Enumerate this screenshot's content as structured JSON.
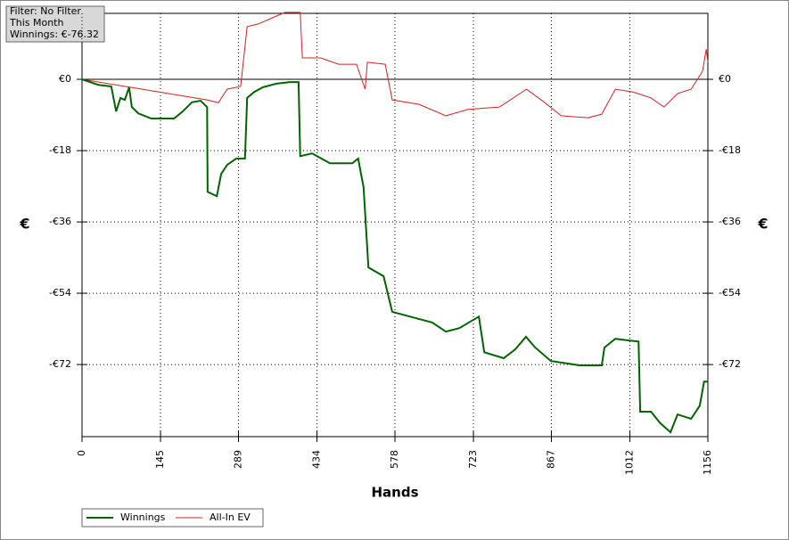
{
  "chart_data": {
    "type": "line",
    "annotations": [
      "Filter: No Filter",
      "This Month",
      "Winnings: €-76.32"
    ],
    "xlabel": "Hands",
    "ylabel": "€",
    "y2label": "€",
    "xlim": [
      0,
      1156
    ],
    "ylim": [
      -90.2,
      16.65
    ],
    "grid": true,
    "legend": "bottom-left",
    "xticks": [
      0,
      145,
      289,
      434,
      578,
      723,
      867,
      1012,
      1156
    ],
    "yticks": [
      {
        "value": 0,
        "label": "€0"
      },
      {
        "value": -18,
        "label": "-€18"
      },
      {
        "value": -36,
        "label": "-€36"
      },
      {
        "value": -54,
        "label": "-€54"
      },
      {
        "value": -72,
        "label": "-€72"
      }
    ],
    "series": [
      {
        "name": "Winnings",
        "color": "#006400",
        "x": [
          0,
          30,
          54,
          63,
          71,
          79,
          87,
          92,
          104,
          128,
          170,
          186,
          203,
          219,
          231,
          232,
          249,
          257,
          268,
          285,
          301,
          305,
          318,
          334,
          359,
          384,
          400,
          403,
          425,
          458,
          499,
          510,
          520,
          529,
          557,
          573,
          606,
          647,
          672,
          697,
          733,
          743,
          779,
          800,
          820,
          837,
          866,
          919,
          960,
          965,
          985,
          1009,
          1028,
          1031,
          1051,
          1068,
          1087,
          1100,
          1125,
          1141,
          1149,
          1156
        ],
        "values": [
          0,
          -1.4,
          -1.8,
          -8.1,
          -4.7,
          -5.2,
          -2,
          -7,
          -8.6,
          -9.9,
          -9.9,
          -8.1,
          -5.8,
          -5.4,
          -7,
          -28.4,
          -29.5,
          -23.9,
          -21.6,
          -20,
          -20,
          -4.7,
          -3.2,
          -2,
          -1.1,
          -0.7,
          -0.7,
          -19.4,
          -18.7,
          -21.2,
          -21.2,
          -20,
          -27.2,
          -47.5,
          -49.7,
          -58.7,
          -59.9,
          -61.4,
          -63.7,
          -62.8,
          -59.9,
          -68.9,
          -70.4,
          -68.2,
          -65,
          -67.7,
          -71.1,
          -72.2,
          -72.2,
          -67.7,
          -65.5,
          -65.9,
          -66.2,
          -83.9,
          -83.9,
          -86.8,
          -89.1,
          -84.6,
          -85.7,
          -82.4,
          -76.3,
          -76.3
        ]
      },
      {
        "name": "All-In EV",
        "color": "#d42020",
        "x": [
          0,
          231,
          252,
          268,
          293,
          305,
          326,
          351,
          375,
          403,
          407,
          441,
          474,
          507,
          523,
          527,
          560,
          573,
          622,
          672,
          713,
          771,
          821,
          854,
          885,
          935,
          960,
          985,
          1018,
          1051,
          1075,
          1100,
          1125,
          1146,
          1153,
          1156
        ],
        "values": [
          0,
          -5.2,
          -5.9,
          -2.5,
          -1.8,
          13.3,
          14,
          15.5,
          16.9,
          16.9,
          5.4,
          5.4,
          3.8,
          3.8,
          -2.5,
          4.3,
          3.8,
          -5.2,
          -6.3,
          -9.2,
          -7.6,
          -7,
          -2.5,
          -5.8,
          -9.2,
          -9.7,
          -8.8,
          -2.5,
          -3.2,
          -4.7,
          -7,
          -3.6,
          -2.5,
          2,
          7.6,
          4.3
        ]
      }
    ]
  }
}
